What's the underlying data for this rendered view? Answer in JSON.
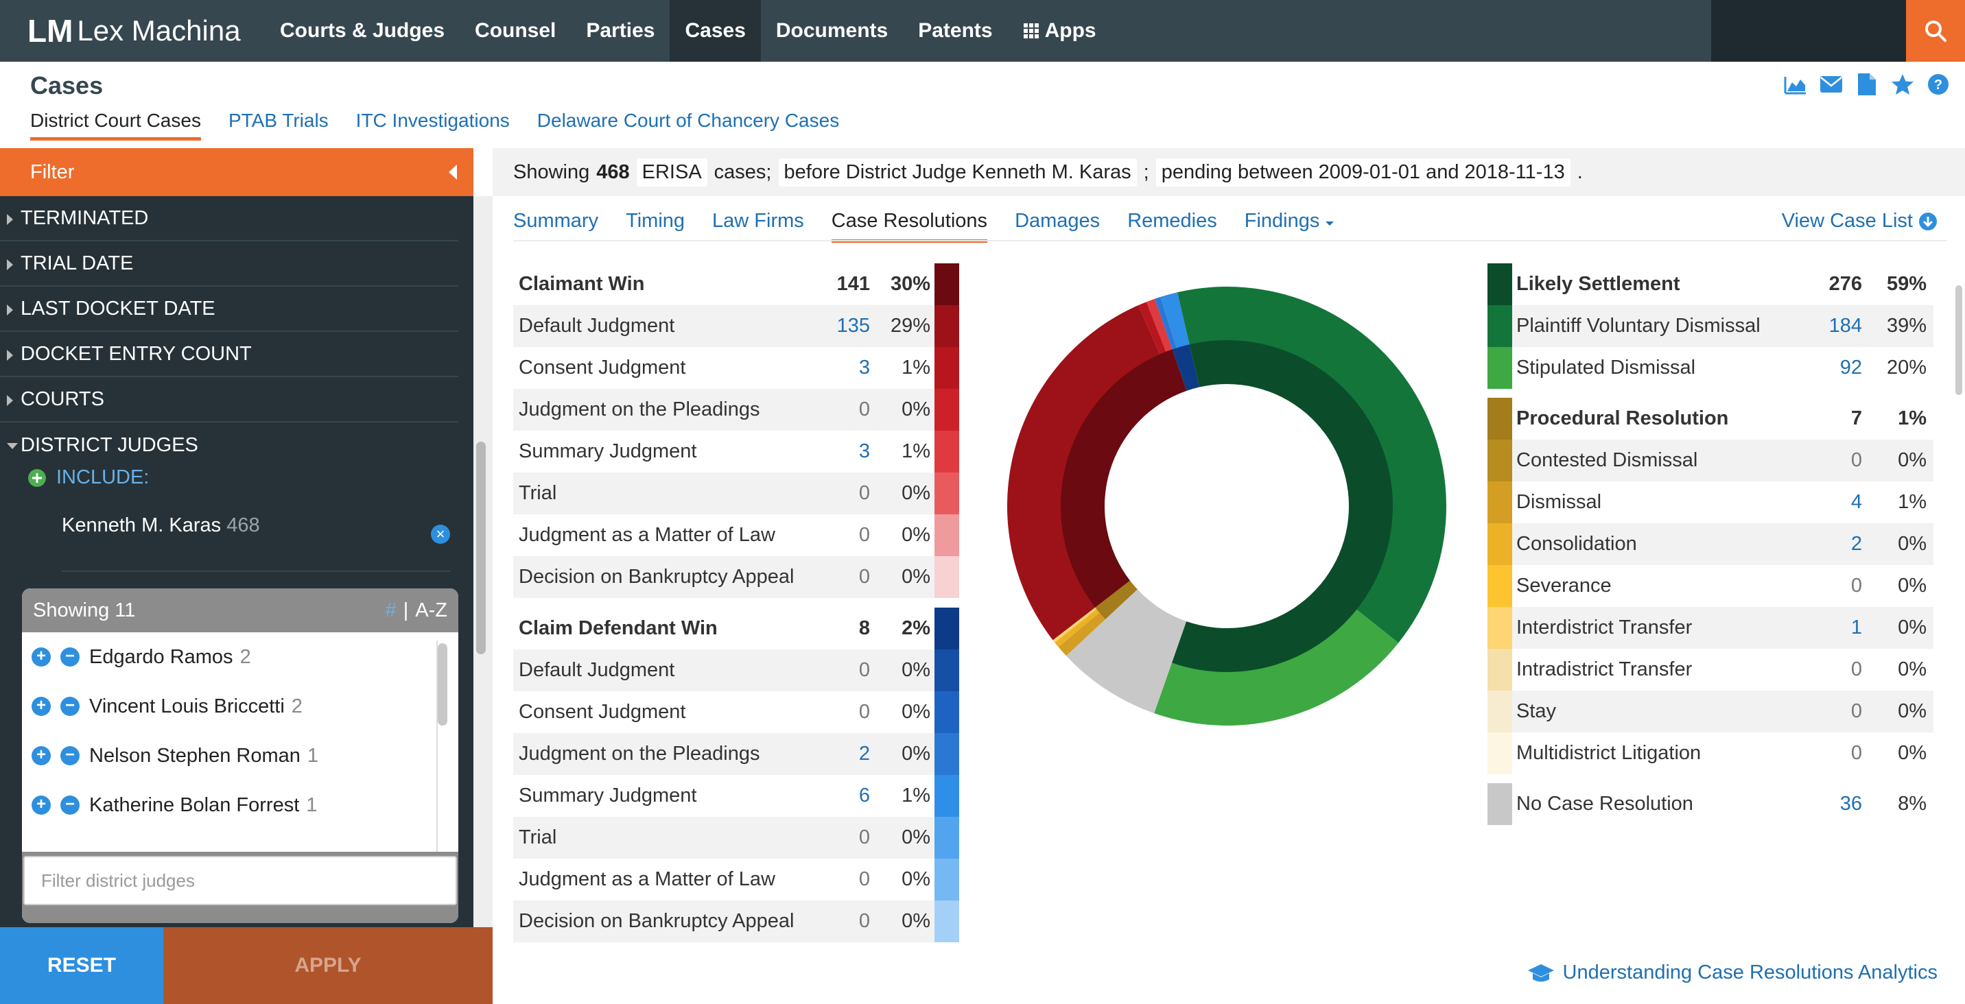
{
  "app": {
    "brand": "Lex Machina",
    "logo_mark": "LM"
  },
  "nav": {
    "items": [
      "Courts & Judges",
      "Counsel",
      "Parties",
      "Cases",
      "Documents",
      "Patents",
      "Apps"
    ],
    "active": "Cases"
  },
  "page": {
    "title": "Cases",
    "subtabs": [
      "District Court Cases",
      "PTAB Trials",
      "ITC Investigations",
      "Delaware Court of Chancery Cases"
    ]
  },
  "sidebar": {
    "filter_label": "Filter",
    "facets": [
      "TERMINATED",
      "TRIAL DATE",
      "LAST DOCKET DATE",
      "DOCKET ENTRY COUNT",
      "COURTS",
      "DISTRICT JUDGES"
    ],
    "include_label": "INCLUDE:",
    "selected_judge": {
      "name": "Kenneth M. Karas",
      "count": "468"
    },
    "judges_box": {
      "showing": "Showing 11",
      "sort_hash": "#",
      "sort_sep": "|",
      "sort_az": "A-Z",
      "judges": [
        {
          "name": "Edgardo Ramos",
          "count": "2"
        },
        {
          "name": "Vincent Louis Briccetti",
          "count": "2"
        },
        {
          "name": "Nelson Stephen Roman",
          "count": "1"
        },
        {
          "name": "Katherine Bolan Forrest",
          "count": "1"
        }
      ],
      "filter_placeholder": "Filter district judges"
    },
    "reset_label": "RESET",
    "apply_label": "APPLY"
  },
  "query": {
    "showing": "Showing",
    "count": "468",
    "case_type": "ERISA",
    "cases": "cases;",
    "judge": "before District Judge Kenneth M. Karas",
    "sep": ";",
    "pending": "pending between 2009-01-01 and 2018-11-13",
    "end": "."
  },
  "tabs": {
    "items": [
      "Summary",
      "Timing",
      "Law Firms",
      "Case Resolutions",
      "Damages",
      "Remedies",
      "Findings"
    ],
    "active": "Case Resolutions",
    "view_case_list": "View Case List"
  },
  "resolutions": {
    "claimant": [
      {
        "label": "Claimant Win",
        "count": "141",
        "pct": "30%",
        "head": true,
        "color": "#6b0a10"
      },
      {
        "label": "Default Judgment",
        "count": "135",
        "pct": "29%",
        "color": "#9c1218"
      },
      {
        "label": "Consent Judgment",
        "count": "3",
        "pct": "1%",
        "color": "#b8161e"
      },
      {
        "label": "Judgment on the Pleadings",
        "count": "0",
        "pct": "0%",
        "color": "#cc2128"
      },
      {
        "label": "Summary Judgment",
        "count": "3",
        "pct": "1%",
        "color": "#df3a3f"
      },
      {
        "label": "Trial",
        "count": "0",
        "pct": "0%",
        "color": "#e95a5e"
      },
      {
        "label": "Judgment as a Matter of Law",
        "count": "0",
        "pct": "0%",
        "color": "#ef9b9d"
      },
      {
        "label": "Decision on Bankruptcy Appeal",
        "count": "0",
        "pct": "0%",
        "color": "#f8d2d3"
      }
    ],
    "defendant": [
      {
        "label": "Claim Defendant Win",
        "count": "8",
        "pct": "2%",
        "head": true,
        "color": "#0d3b87"
      },
      {
        "label": "Default Judgment",
        "count": "0",
        "pct": "0%",
        "color": "#164fa6"
      },
      {
        "label": "Consent Judgment",
        "count": "0",
        "pct": "0%",
        "color": "#1f63c2"
      },
      {
        "label": "Judgment on the Pleadings",
        "count": "2",
        "pct": "0%",
        "color": "#2a78d4"
      },
      {
        "label": "Summary Judgment",
        "count": "6",
        "pct": "1%",
        "color": "#2f8ee8"
      },
      {
        "label": "Trial",
        "count": "0",
        "pct": "0%",
        "color": "#52a4ef"
      },
      {
        "label": "Judgment as a Matter of Law",
        "count": "0",
        "pct": "0%",
        "color": "#76b8f3"
      },
      {
        "label": "Decision on Bankruptcy Appeal",
        "count": "0",
        "pct": "0%",
        "color": "#a4d0f7"
      }
    ],
    "settlement": [
      {
        "label": "Likely Settlement",
        "count": "276",
        "pct": "59%",
        "head": true,
        "color": "#0b4d2a"
      },
      {
        "label": "Plaintiff Voluntary Dismissal",
        "count": "184",
        "pct": "39%",
        "color": "#13753a"
      },
      {
        "label": "Stipulated Dismissal",
        "count": "92",
        "pct": "20%",
        "color": "#3ea843"
      }
    ],
    "procedural": [
      {
        "label": "Procedural Resolution",
        "count": "7",
        "pct": "1%",
        "head": true,
        "color": "#a37c1b"
      },
      {
        "label": "Contested Dismissal",
        "count": "0",
        "pct": "0%",
        "color": "#b88d1f"
      },
      {
        "label": "Dismissal",
        "count": "4",
        "pct": "1%",
        "color": "#d49e24"
      },
      {
        "label": "Consolidation",
        "count": "2",
        "pct": "0%",
        "color": "#ecb126"
      },
      {
        "label": "Severance",
        "count": "0",
        "pct": "0%",
        "color": "#fcc431"
      },
      {
        "label": "Interdistrict Transfer",
        "count": "1",
        "pct": "0%",
        "color": "#fdd572"
      },
      {
        "label": "Intradistrict Transfer",
        "count": "0",
        "pct": "0%",
        "color": "#f5e0aa"
      },
      {
        "label": "Stay",
        "count": "0",
        "pct": "0%",
        "color": "#f8ecd0"
      },
      {
        "label": "Multidistrict Litigation",
        "count": "0",
        "pct": "0%",
        "color": "#fdf6e3"
      }
    ],
    "none": {
      "label": "No Case Resolution",
      "count": "36",
      "pct": "8%",
      "color": "#c8c8c8"
    }
  },
  "chart_data": {
    "type": "pie",
    "title": "",
    "inner_ring": [
      {
        "name": "Likely Settlement",
        "value": 276,
        "color": "#0b4d2a"
      },
      {
        "name": "No Case Resolution",
        "value": 36,
        "color": "#c8c8c8"
      },
      {
        "name": "Procedural Resolution",
        "value": 7,
        "color": "#a37c1b"
      },
      {
        "name": "Claimant Win",
        "value": 141,
        "color": "#6b0a10"
      },
      {
        "name": "Claim Defendant Win",
        "value": 8,
        "color": "#0d3b87"
      }
    ],
    "outer_ring": [
      {
        "name": "Plaintiff Voluntary Dismissal",
        "value": 184,
        "color": "#13753a"
      },
      {
        "name": "Stipulated Dismissal",
        "value": 92,
        "color": "#3ea843"
      },
      {
        "name": "No Case Resolution",
        "value": 36,
        "color": "#c8c8c8"
      },
      {
        "name": "Dismissal",
        "value": 4,
        "color": "#d49e24"
      },
      {
        "name": "Consolidation",
        "value": 2,
        "color": "#ecb126"
      },
      {
        "name": "Interdistrict Transfer",
        "value": 1,
        "color": "#fdd572"
      },
      {
        "name": "Default Judgment",
        "value": 135,
        "color": "#9c1218"
      },
      {
        "name": "Consent Judgment",
        "value": 3,
        "color": "#b8161e"
      },
      {
        "name": "Summary Judgment (Claimant)",
        "value": 3,
        "color": "#df3a3f"
      },
      {
        "name": "Judgment on the Pleadings (Defendant)",
        "value": 2,
        "color": "#2a78d4"
      },
      {
        "name": "Summary Judgment (Defendant)",
        "value": 6,
        "color": "#2f8ee8"
      }
    ]
  },
  "footer_link": "Understanding Case Resolutions Analytics"
}
